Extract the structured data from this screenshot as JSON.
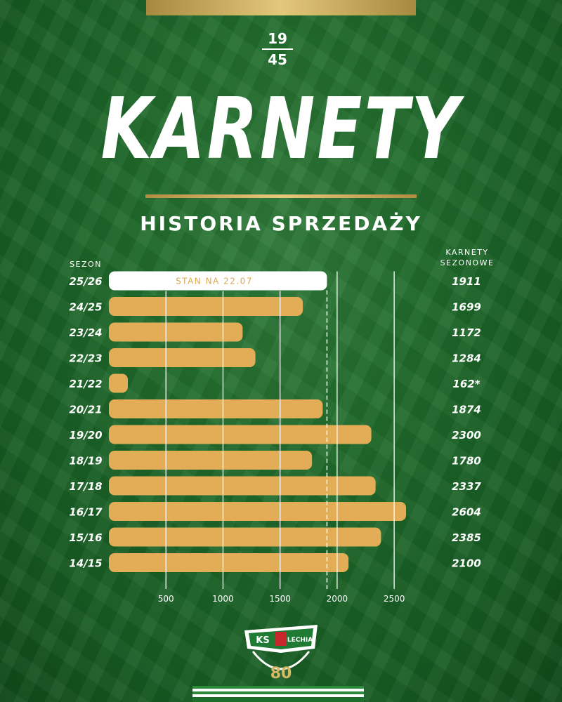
{
  "header": {
    "year_top": "19",
    "year_bottom": "45",
    "title": "KARNETY",
    "subtitle": "HISTORIA SPRZEDAŻY"
  },
  "logo": {
    "club_left": "KS",
    "club_right": "LECHIA",
    "anniversary": "80"
  },
  "colors": {
    "background": "#1f6a2b",
    "bar": "#e3ac56",
    "current_bar": "#ffffff",
    "gold": "#d6b865"
  },
  "chart_data": {
    "type": "bar",
    "orientation": "horizontal",
    "title": "HISTORIA SPRZEDAŻY",
    "category_header": "SEZON",
    "value_header_line1": "KARNETY",
    "value_header_line2": "SEZONOWE",
    "categories": [
      "25/26",
      "24/25",
      "23/24",
      "22/23",
      "21/22",
      "20/21",
      "19/20",
      "18/19",
      "17/18",
      "16/17",
      "15/16",
      "14/15"
    ],
    "values": [
      1911,
      1699,
      1172,
      1284,
      162,
      1874,
      2300,
      1780,
      2337,
      2604,
      2385,
      2100
    ],
    "value_labels": [
      "1911",
      "1699",
      "1172",
      "1284",
      "162*",
      "1874",
      "2300",
      "1780",
      "2337",
      "2604",
      "2385",
      "2100"
    ],
    "highlight_index": 0,
    "highlight_label": "STAN NA 22.07",
    "x_ticks": [
      500,
      1000,
      1500,
      2000,
      2500
    ],
    "xlim": [
      0,
      2604
    ],
    "reference_line": 1911,
    "grid": true
  }
}
